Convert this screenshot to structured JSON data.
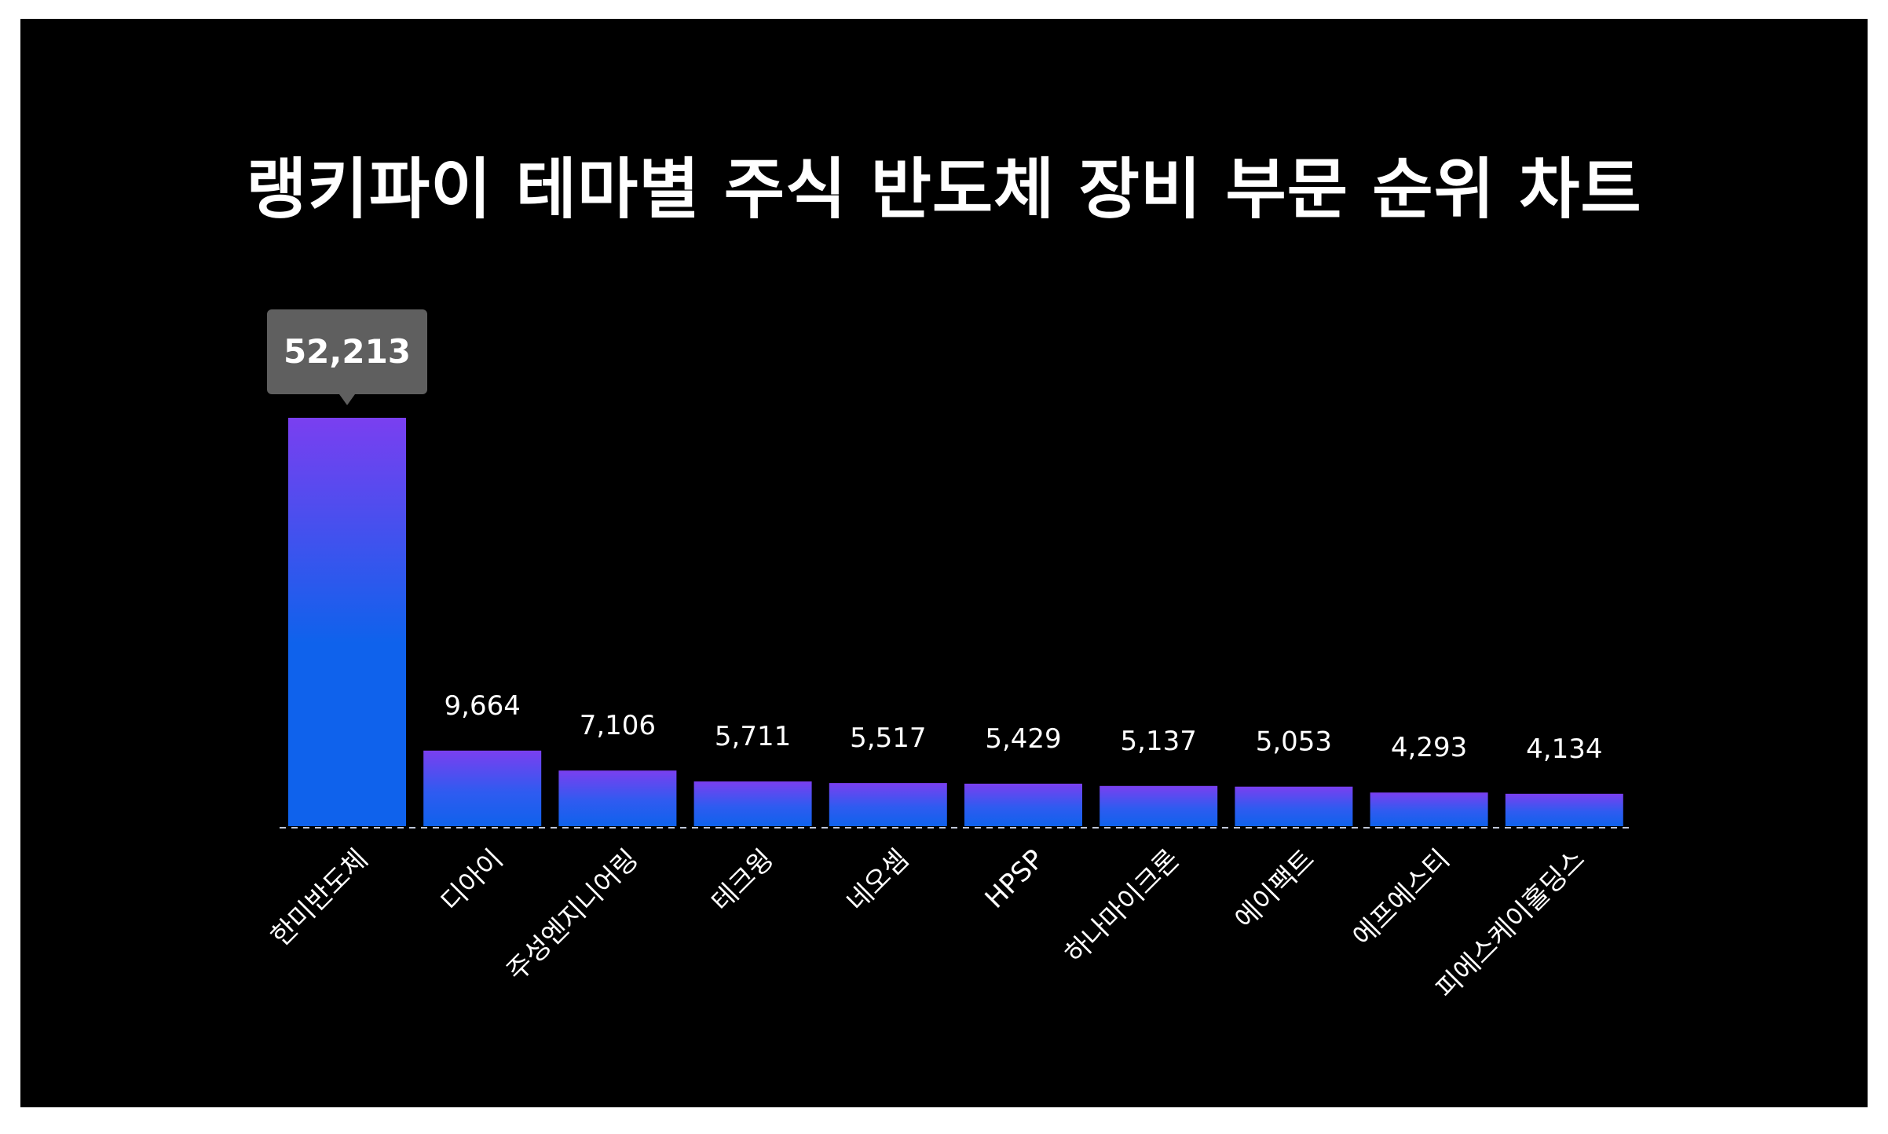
{
  "chart_data": {
    "type": "bar",
    "title": "랭키파이 테마별 주식 반도체 장비 부문 순위 차트",
    "categories": [
      "한미반도체",
      "디아이",
      "주성엔지니어링",
      "테크윙",
      "네오셈",
      "HPSP",
      "하나마이크론",
      "에이팩트",
      "에프에스티",
      "피에스케이홀딩스"
    ],
    "values": [
      52213,
      9664,
      7106,
      5711,
      5517,
      5429,
      5137,
      5053,
      4293,
      4134
    ],
    "value_labels": [
      "52,213",
      "9,664",
      "7,106",
      "5,711",
      "5,517",
      "5,429",
      "5,137",
      "5,053",
      "4,293",
      "4,134"
    ],
    "highlight_index": 0,
    "xlabel": "",
    "ylabel": "",
    "ylim": [
      0,
      52213
    ],
    "grid": false,
    "legend": "none"
  },
  "colors": {
    "background": "#000000",
    "bar_top": "#7a3ff0",
    "bar_bottom": "#0f62ec",
    "baseline": "#bfc6d6",
    "tooltip_bg": "#5f5f5f",
    "text": "#ffffff"
  }
}
